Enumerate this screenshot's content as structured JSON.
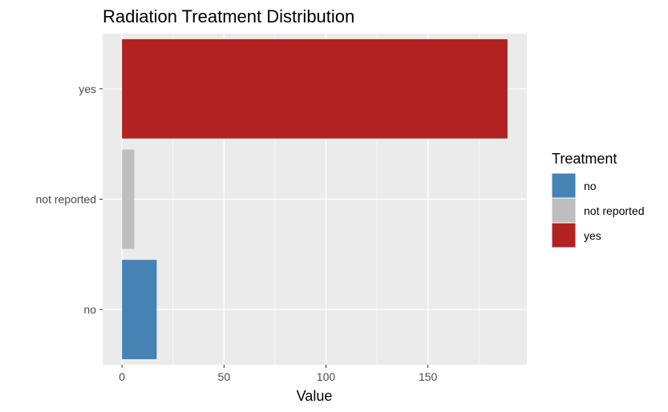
{
  "chart_data": {
    "type": "bar",
    "orientation": "horizontal",
    "title": "Radiation Treatment Distribution",
    "xlabel": "Value",
    "ylabel": "",
    "categories": [
      "no",
      "not reported",
      "yes"
    ],
    "values": [
      17,
      6,
      189
    ],
    "colors": [
      "#4682B4",
      "#BEBEBE",
      "#B22222"
    ],
    "xlim": [
      -9.5,
      198.5
    ],
    "xticks": [
      0,
      50,
      100,
      150
    ],
    "xtick_labels": [
      "0",
      "50",
      "100",
      "150"
    ],
    "grid": true,
    "panel_background": "#EBEBEB",
    "legend": {
      "title": "Treatment",
      "placement": "right",
      "items": [
        {
          "label": "no",
          "color": "#4682B4"
        },
        {
          "label": "not reported",
          "color": "#BEBEBE"
        },
        {
          "label": "yes",
          "color": "#B22222"
        }
      ]
    }
  }
}
